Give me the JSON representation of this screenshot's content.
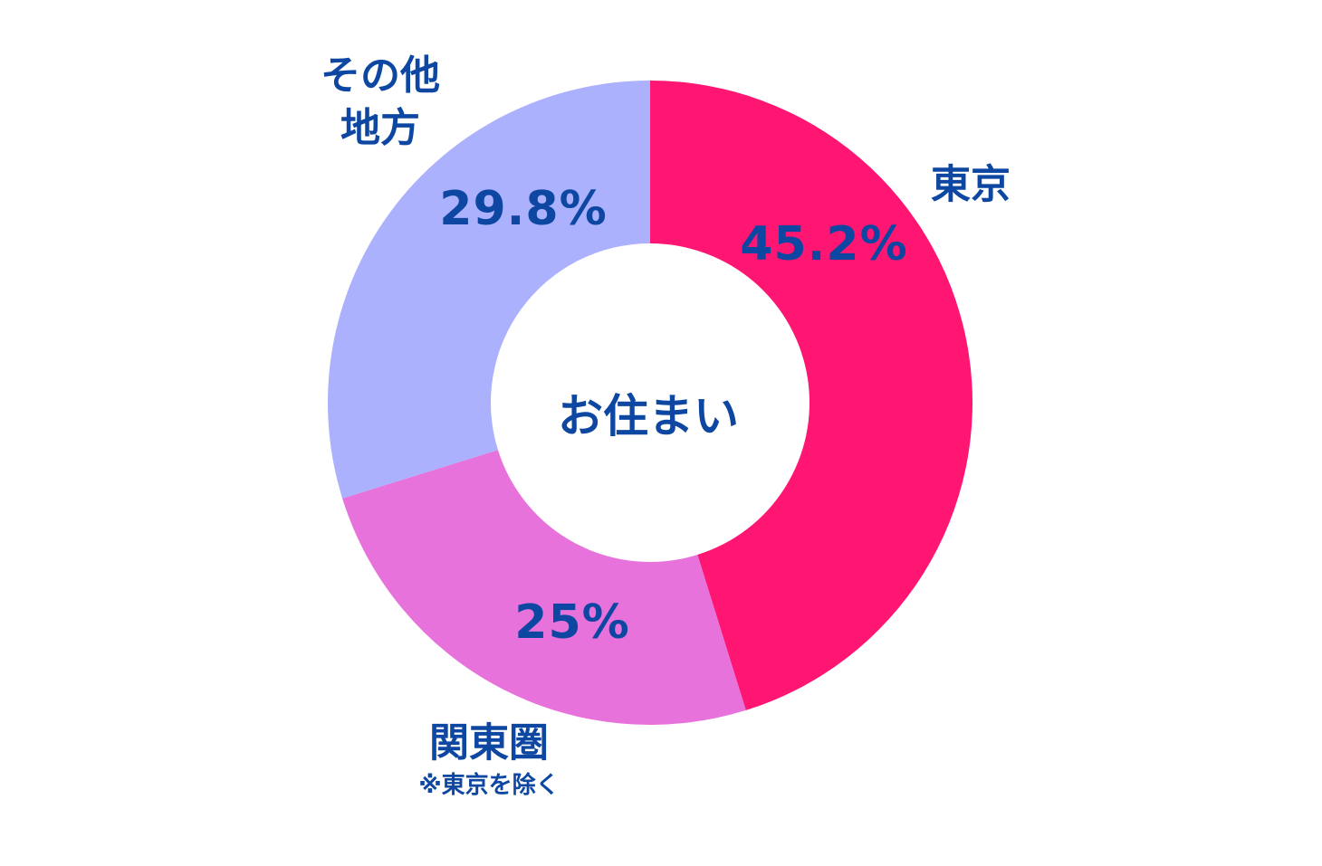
{
  "chart_data": {
    "type": "pie",
    "title": "お住まい",
    "slices": [
      {
        "label": "東京",
        "note": "",
        "value": 45.2,
        "value_label": "45.2%",
        "color": "#fe1672"
      },
      {
        "label": "関東圏",
        "note": "※東京を除く",
        "value": 25,
        "value_label": "25%",
        "color": "#e872db"
      },
      {
        "label": "その他\n地方",
        "note": "",
        "value": 29.8,
        "value_label": "29.8%",
        "color": "#acb1fe"
      }
    ]
  }
}
